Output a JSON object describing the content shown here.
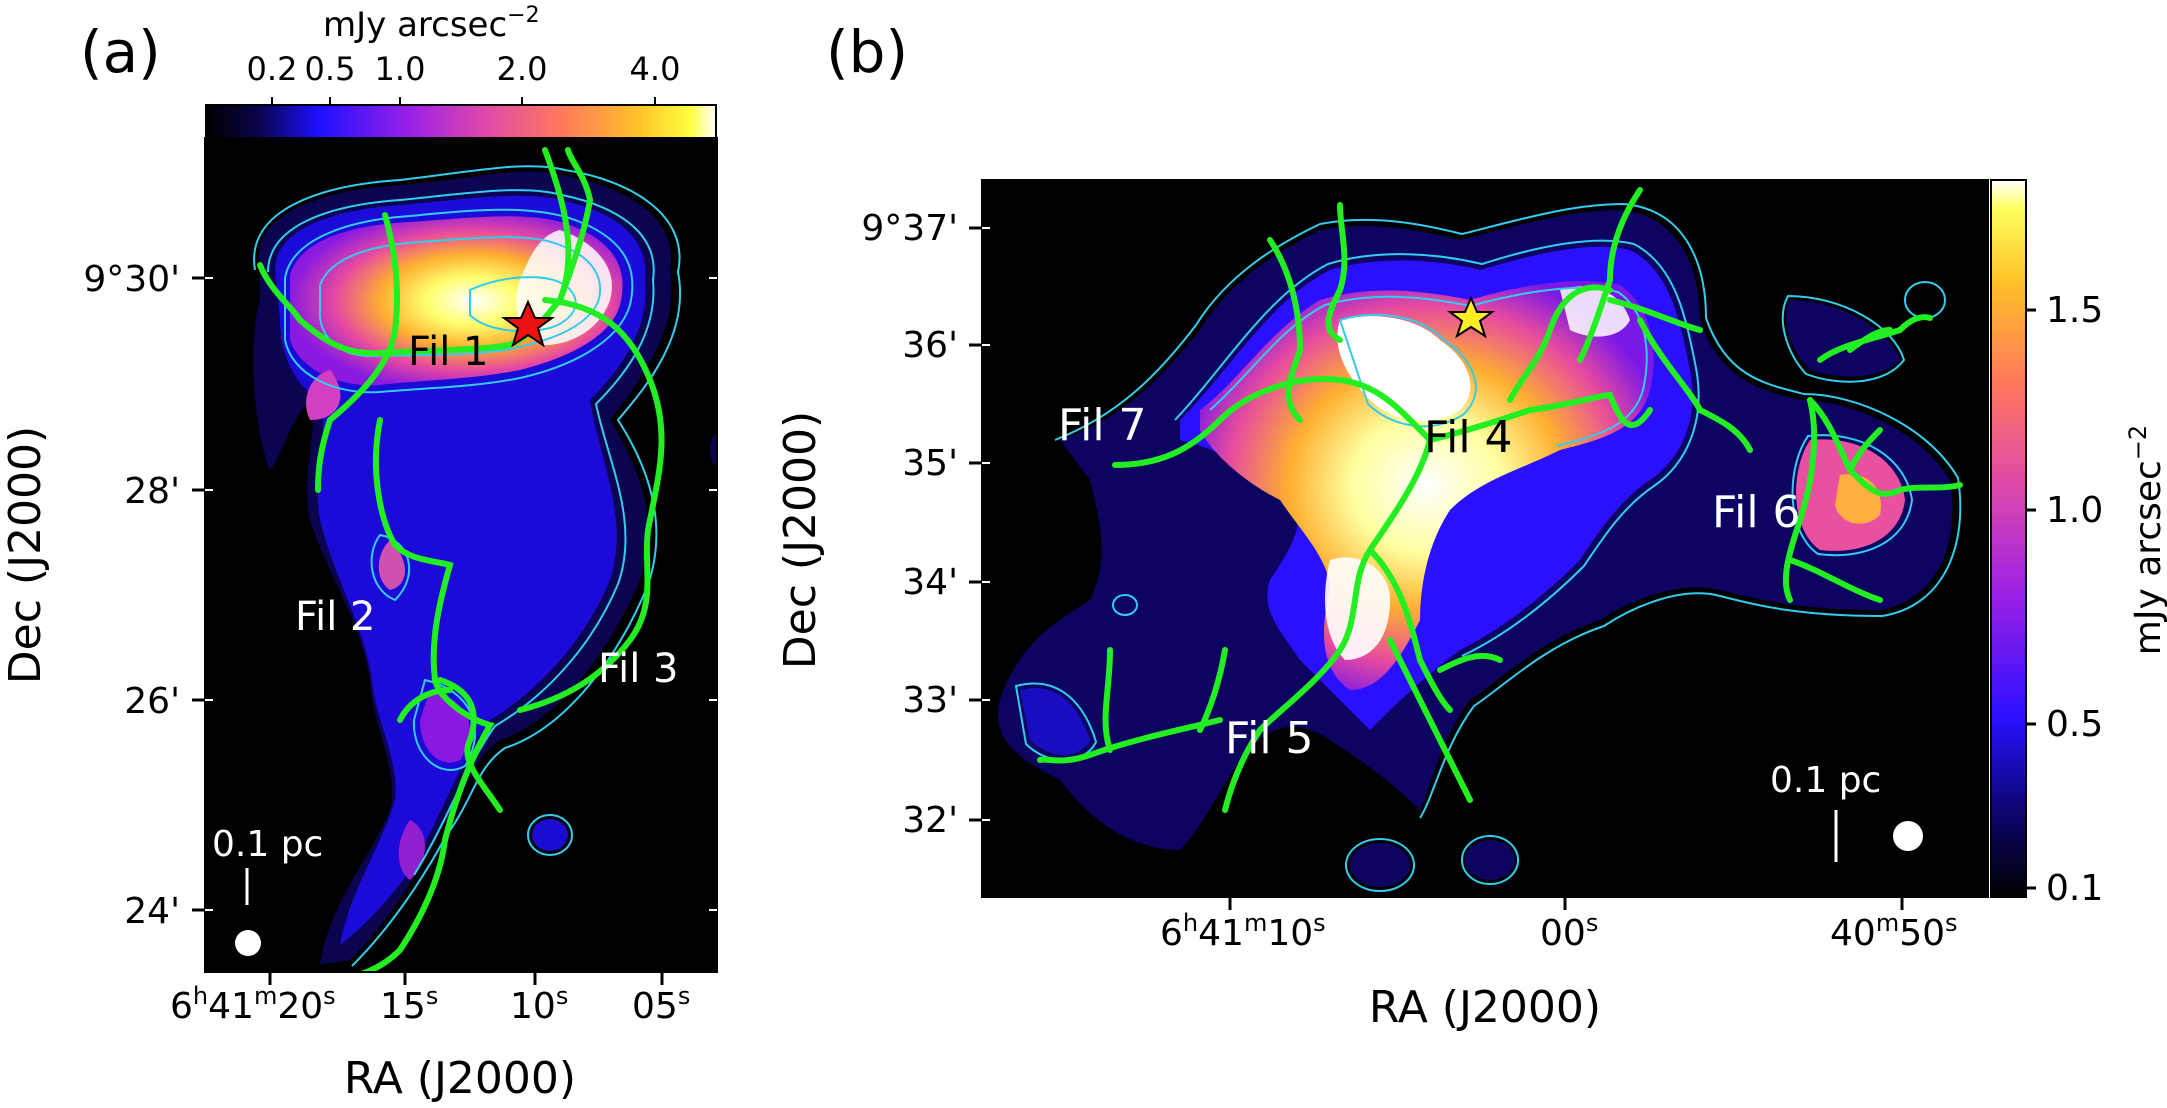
{
  "figure": {
    "panel_a": {
      "label": "(a)",
      "colorbar": {
        "unit": "mJy arcsec",
        "unit_sup": "−2",
        "ticks": [
          "0.2",
          "0.5",
          "1.0",
          "2.0",
          "4.0"
        ]
      },
      "y_ticks": [
        "9°30'",
        "28'",
        "26'",
        "24'"
      ],
      "x_ticks": [
        {
          "main": "6",
          "sups": [
            "h",
            "41",
            "m",
            "20",
            "s"
          ]
        },
        {
          "main": "15",
          "sup": "s"
        },
        {
          "main": "10",
          "sup": "s"
        },
        {
          "main": "05",
          "sup": "s"
        }
      ],
      "xlabel": "RA (J2000)",
      "ylabel": "Dec (J2000)",
      "labels": [
        "Fil 1",
        "Fil 2",
        "Fil 3"
      ],
      "scale_bar": "0.1 pc",
      "marker": "star-red"
    },
    "panel_b": {
      "label": "(b)",
      "colorbar": {
        "unit": "mJy arcsec",
        "unit_sup": "−2",
        "ticks": [
          "1.5",
          "1.0",
          "0.5",
          "0.1"
        ]
      },
      "y_ticks": [
        "9°37'",
        "36'",
        "35'",
        "34'",
        "33'",
        "32'"
      ],
      "x_ticks": [
        {
          "main": "6",
          "sups": [
            "h",
            "41",
            "m",
            "10",
            "s"
          ]
        },
        {
          "main": "00",
          "sup": "s"
        },
        {
          "main": "40",
          "sups": [
            "m",
            "50",
            "s"
          ]
        }
      ],
      "xlabel": "RA (J2000)",
      "ylabel": "Dec (J2000)",
      "labels": [
        "Fil 4",
        "Fil 5",
        "Fil 6",
        "Fil 7"
      ],
      "scale_bar": "0.1 pc",
      "marker": "star-yellow"
    },
    "colors": {
      "filament": "#22ee22",
      "contour": "#33ccee",
      "star_a": "#ee1111",
      "star_b": "#ffee22"
    }
  }
}
